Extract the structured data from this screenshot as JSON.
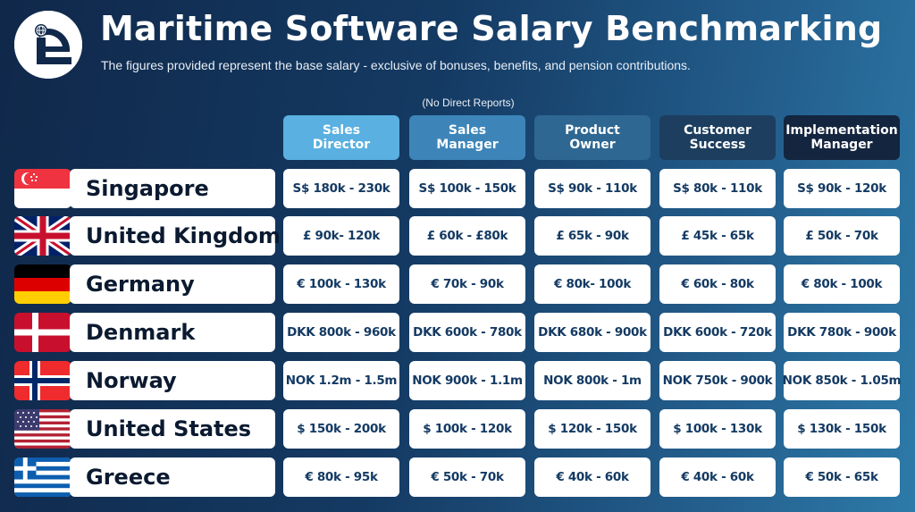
{
  "header": {
    "title": "Maritime Software Salary Benchmarking",
    "subtitle": "The figures provided represent the base salary - exclusive of bonuses, benefits, and pension contributions.",
    "note": "(No Direct Reports)"
  },
  "columns": [
    {
      "label": "Sales\nDirector",
      "color": "#5ab0e0"
    },
    {
      "label": "Sales\nManager",
      "color": "#3d85b9"
    },
    {
      "label": "Product\nOwner",
      "color": "#2e6792"
    },
    {
      "label": "Customer\nSuccess",
      "color": "#1d3e5f"
    },
    {
      "label": "Implementation\nManager",
      "color": "#14253f"
    }
  ],
  "rows": [
    {
      "country": "Singapore",
      "flag": "singapore-flag",
      "values": [
        "S$ 180k - 230k",
        "S$ 100k - 150k",
        "S$ 90k - 110k",
        "S$ 80k - 110k",
        "S$ 90k - 120k"
      ]
    },
    {
      "country": "United Kingdom",
      "flag": "uk-flag",
      "values": [
        "£ 90k- 120k",
        "£ 60k - £80k",
        "£ 65k - 90k",
        "£ 45k - 65k",
        "£ 50k - 70k"
      ]
    },
    {
      "country": "Germany",
      "flag": "germany-flag",
      "values": [
        "€ 100k - 130k",
        "€ 70k - 90k",
        "€ 80k- 100k",
        "€ 60k - 80k",
        "€ 80k - 100k"
      ]
    },
    {
      "country": "Denmark",
      "flag": "denmark-flag",
      "values": [
        "DKK 800k - 960k",
        "DKK 600k - 780k",
        "DKK 680k - 900k",
        "DKK 600k - 720k",
        "DKK 780k - 900k"
      ]
    },
    {
      "country": "Norway",
      "flag": "norway-flag",
      "values": [
        "NOK 1.2m - 1.5m",
        "NOK 900k - 1.1m",
        "NOK 800k - 1m",
        "NOK 750k - 900k",
        "NOK 850k - 1.05m"
      ]
    },
    {
      "country": "United States",
      "flag": "usa-flag",
      "values": [
        "$ 150k - 200k",
        "$ 100k - 120k",
        "$ 120k - 150k",
        "$ 100k - 130k",
        "$ 130k - 150k"
      ]
    },
    {
      "country": "Greece",
      "flag": "greece-flag",
      "values": [
        "€ 80k - 95k",
        "€ 50k - 70k",
        "€ 40k - 60k",
        "€ 40k - 60k",
        "€ 50k - 65k"
      ]
    }
  ]
}
